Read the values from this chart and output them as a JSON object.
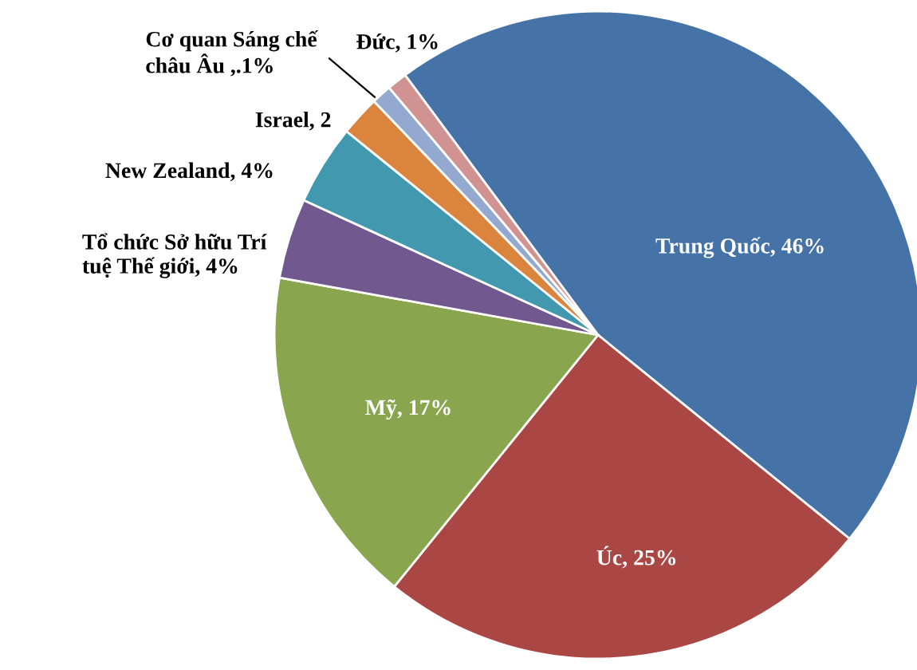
{
  "chart_data": {
    "type": "pie",
    "categories": [
      "Trung Quốc, 46%",
      "Úc, 25%",
      "Mỹ, 17%",
      "Tổ chức Sở hữu Trí\ntuệ Thế giới, 4%",
      "New Zealand, 4%",
      "Israel, 2",
      "Cơ quan Sáng chế\nchâu Âu ,.1%",
      "Đức, 1%"
    ],
    "values": [
      46,
      25,
      17,
      4,
      4,
      2,
      1,
      1
    ],
    "colors": [
      "#4572a7",
      "#aa4643",
      "#89a54e",
      "#71588f",
      "#4198af",
      "#db843d",
      "#93a9cf",
      "#d19392"
    ],
    "legend": false
  }
}
